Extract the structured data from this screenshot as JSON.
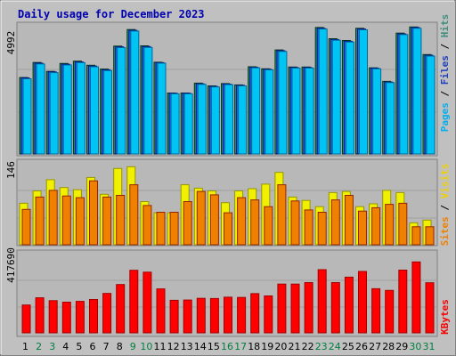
{
  "title": "Daily usage for December 2023",
  "colors": {
    "background": "#c0c0c0",
    "panel": "#b8b8b8",
    "title": "#0000b0",
    "pages": "#00c4f4",
    "files": "#1e6ef0",
    "hits": "#2f8f6f",
    "visits": "#f0f000",
    "sites": "#f08000",
    "kbytes": "#ff0000",
    "weekend_label": "#007f3f",
    "weekday_label": "#000000"
  },
  "panels": {
    "hits": {
      "max_label": "4992",
      "legend": [
        {
          "text": "Pages",
          "color": "#00b0f0"
        },
        {
          "text": "Files",
          "color": "#1f3fbf"
        },
        {
          "text": "Hits",
          "color": "#3f8f7f"
        }
      ]
    },
    "visits": {
      "max_label": "146",
      "legend": [
        {
          "text": "Sites",
          "color": "#f08000"
        },
        {
          "text": "Visits",
          "color": "#f0d000"
        }
      ]
    },
    "kbytes": {
      "max_label": "417690",
      "legend": [
        {
          "text": "KBytes",
          "color": "#ff0000"
        }
      ]
    }
  },
  "chart_data": {
    "type": "bar",
    "title": "Daily usage for December 2023",
    "days": [
      "1",
      "2",
      "3",
      "4",
      "5",
      "6",
      "7",
      "8",
      "9",
      "10",
      "11",
      "12",
      "13",
      "14",
      "15",
      "16",
      "17",
      "18",
      "19",
      "20",
      "21",
      "22",
      "23",
      "24",
      "25",
      "26",
      "27",
      "28",
      "29",
      "30",
      "31"
    ],
    "weekend_days": [
      "2",
      "3",
      "9",
      "10",
      "16",
      "17",
      "23",
      "24",
      "30",
      "31"
    ],
    "hits_panel": {
      "ymax": 4992,
      "series": [
        {
          "name": "Hits",
          "values": [
            3000,
            3590,
            3240,
            3550,
            3640,
            3480,
            3330,
            4230,
            4880,
            4240,
            3600,
            2390,
            2390,
            2780,
            2670,
            2760,
            2710,
            3420,
            3340,
            4080,
            3410,
            3410,
            4960,
            4520,
            4450,
            4930,
            3380,
            2850,
            4740,
            4980,
            3900
          ]
        },
        {
          "name": "Files",
          "values": [
            2980,
            3560,
            3220,
            3520,
            3610,
            3450,
            3300,
            4200,
            4850,
            4210,
            3580,
            2380,
            2380,
            2750,
            2650,
            2740,
            2690,
            3400,
            3320,
            4050,
            3390,
            3390,
            4930,
            4490,
            4420,
            4900,
            3360,
            2820,
            4710,
            4960,
            3870
          ]
        },
        {
          "name": "Pages",
          "values": [
            2950,
            3530,
            3190,
            3490,
            3580,
            3420,
            3270,
            4170,
            4820,
            4180,
            3560,
            2360,
            2360,
            2730,
            2630,
            2720,
            2670,
            3380,
            3300,
            4020,
            3370,
            3370,
            4900,
            4460,
            4390,
            4870,
            3340,
            2800,
            4680,
            4930,
            3840
          ]
        }
      ]
    },
    "visits_panel": {
      "ymax": 146,
      "series": [
        {
          "name": "Visits",
          "values": [
            74,
            96,
            116,
            102,
            98,
            120,
            90,
            136,
            139,
            77,
            57,
            57,
            107,
            101,
            96,
            75,
            96,
            100,
            108,
            129,
            85,
            79,
            68,
            93,
            95,
            68,
            73,
            97,
            93,
            39,
            44
          ]
        },
        {
          "name": "Sites",
          "values": [
            63,
            85,
            97,
            87,
            84,
            114,
            85,
            88,
            107,
            70,
            58,
            58,
            77,
            95,
            89,
            57,
            84,
            80,
            68,
            107,
            78,
            62,
            58,
            80,
            88,
            60,
            66,
            72,
            74,
            32,
            32
          ]
        }
      ]
    },
    "kbytes_panel": {
      "ymax": 417690,
      "series": [
        {
          "name": "KBytes",
          "values": [
            147000,
            185000,
            170000,
            162000,
            166000,
            176000,
            208000,
            255000,
            330000,
            320000,
            232000,
            172000,
            173000,
            182000,
            181000,
            188000,
            187000,
            207000,
            195000,
            257000,
            257000,
            265000,
            333000,
            265000,
            294000,
            324000,
            233000,
            224000,
            331000,
            374000,
            264000
          ]
        }
      ]
    }
  }
}
